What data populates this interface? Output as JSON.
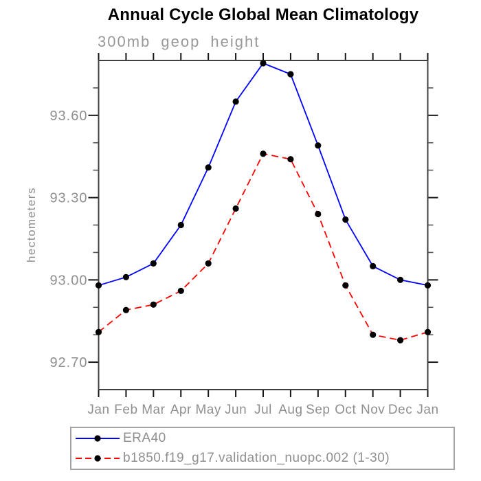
{
  "title": "Annual Cycle Global Mean Climatology",
  "subtitle": "300mb geop height",
  "ylabel": "hectometers",
  "legend": {
    "entries": [
      {
        "label": "ERA40",
        "color": "#0000ff",
        "line_style": "solid",
        "marker_color": "#000000"
      },
      {
        "label": "b1850.f19_g17.validation_nuopc.002 (1-30)",
        "color": "#ff0000",
        "line_style": "dashed",
        "marker_color": "#000000"
      }
    ]
  },
  "colors": {
    "axis_border": "#3f3f3f",
    "major_tick": "#161616",
    "minor_tick": "#555555",
    "tick_label": "#8f8f8f",
    "title": "#000000",
    "subtitle": "#989898",
    "era40_line": "#0000ff",
    "model_line": "#ff0000",
    "marker": "#000000"
  },
  "chart_data": {
    "type": "line",
    "title": "Annual Cycle Global Mean Climatology",
    "subtitle": "300mb geop height",
    "xlabel": "",
    "ylabel": "hectometers",
    "categories": [
      "Jan",
      "Feb",
      "Mar",
      "Apr",
      "May",
      "Jun",
      "Jul",
      "Aug",
      "Sep",
      "Oct",
      "Nov",
      "Dec",
      "Jan"
    ],
    "ylim": [
      92.6,
      93.8
    ],
    "y_major_ticks": [
      92.7,
      93.0,
      93.3,
      93.6
    ],
    "y_minor_step": 0.1,
    "grid": false,
    "legend_position": "below-bottom-left",
    "series": [
      {
        "name": "ERA40",
        "color": "#0000ff",
        "line_style": "solid",
        "marker": "filled-circle",
        "marker_color": "#000000",
        "values": [
          92.98,
          93.01,
          93.06,
          93.2,
          93.41,
          93.65,
          93.79,
          93.75,
          93.49,
          93.22,
          93.05,
          93.0,
          92.98
        ]
      },
      {
        "name": "b1850.f19_g17.validation_nuopc.002 (1-30)",
        "color": "#ff0000",
        "line_style": "dashed",
        "marker": "filled-circle",
        "marker_color": "#000000",
        "values": [
          92.81,
          92.89,
          92.91,
          92.96,
          93.06,
          93.26,
          93.46,
          93.44,
          93.24,
          92.98,
          92.8,
          92.78,
          92.81
        ]
      }
    ]
  }
}
